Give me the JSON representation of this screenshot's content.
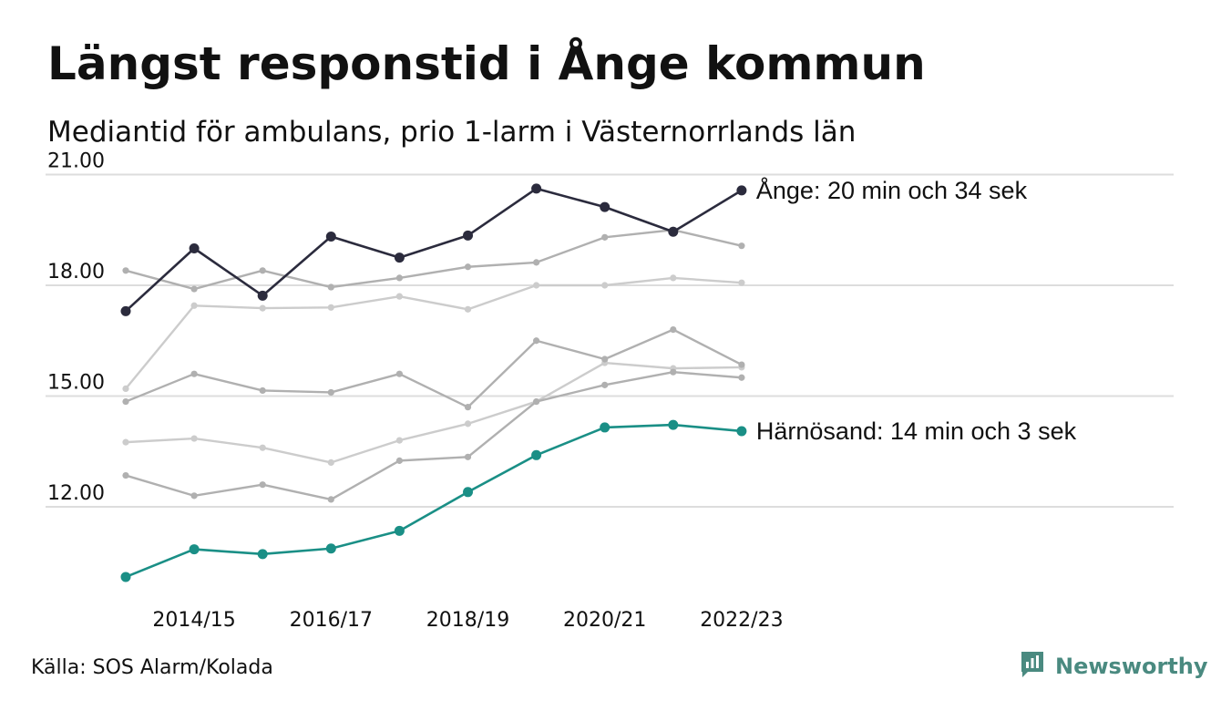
{
  "header": {
    "title": "Längst responstid i Ånge kommun",
    "subtitle": "Mediantid för ambulans, prio 1-larm i Västernorrlands län"
  },
  "footer": {
    "source": "Källa: SOS Alarm/Kolada",
    "brand": "Newsworthy"
  },
  "colors": {
    "highlight_dark": "#2b2b3d",
    "highlight_teal": "#1a8f86",
    "background_series": "#b0b0b0",
    "background_series_light": "#cccccc",
    "grid": "#dddddd",
    "brand": "#4a8a80"
  },
  "chart_data": {
    "type": "line",
    "x": [
      "2013/14",
      "2014/15",
      "2015/16",
      "2016/17",
      "2017/18",
      "2018/19",
      "2019/20",
      "2020/21",
      "2021/22",
      "2022/23"
    ],
    "x_tick_labels": [
      "2014/15",
      "2016/17",
      "2018/19",
      "2020/21",
      "2022/23"
    ],
    "y_tick_labels": [
      "12.00",
      "15.00",
      "18.00",
      "21.00"
    ],
    "ylim": [
      10,
      21.5
    ],
    "grid": true,
    "legend": "none",
    "series": [
      {
        "role": "background",
        "shade": "light",
        "values": [
          13.75,
          13.85,
          13.6,
          13.2,
          13.8,
          14.25,
          14.85,
          15.9,
          15.75,
          15.78
        ]
      },
      {
        "role": "background",
        "shade": "mid",
        "values": [
          12.85,
          12.3,
          12.6,
          12.2,
          13.25,
          13.35,
          14.85,
          15.3,
          15.65,
          15.5
        ]
      },
      {
        "role": "background",
        "shade": "mid",
        "values": [
          14.85,
          15.6,
          15.15,
          15.1,
          15.6,
          14.7,
          16.5,
          16.0,
          16.8,
          15.85
        ]
      },
      {
        "role": "background",
        "shade": "light",
        "values": [
          15.2,
          17.45,
          17.38,
          17.4,
          17.7,
          17.35,
          18.0,
          18.0,
          18.2,
          18.07
        ]
      },
      {
        "role": "background",
        "shade": "mid",
        "values": [
          18.4,
          17.9,
          18.4,
          17.95,
          18.2,
          18.5,
          18.62,
          19.3,
          19.5,
          19.07
        ]
      },
      {
        "role": "highlight",
        "color": "teal",
        "name": "Härnösand",
        "values": [
          10.1,
          10.85,
          10.72,
          10.87,
          11.35,
          12.4,
          13.4,
          14.15,
          14.22,
          14.05
        ]
      },
      {
        "role": "highlight",
        "color": "dark",
        "name": "Ånge",
        "values": [
          17.3,
          19.0,
          17.72,
          19.32,
          18.75,
          19.35,
          20.62,
          20.12,
          19.45,
          20.57
        ]
      }
    ],
    "annotations": [
      {
        "series": "Ånge",
        "text": "Ånge: 20 min och 34 sek"
      },
      {
        "series": "Härnösand",
        "text": "Härnösand: 14 min och 3 sek"
      }
    ]
  }
}
